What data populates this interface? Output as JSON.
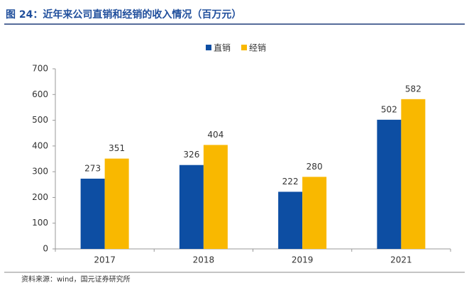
{
  "chart_data": {
    "type": "bar",
    "title": "图 24：近年来公司直销和经销的收入情况（百万元）",
    "source": "资料来源：wind，国元证券研究所",
    "categories": [
      "2017",
      "2018",
      "2019",
      "2021"
    ],
    "series": [
      {
        "name": "直销",
        "color": "#0d4ea3",
        "values": [
          273,
          326,
          222,
          502
        ]
      },
      {
        "name": "经销",
        "color": "#f9b800",
        "values": [
          351,
          404,
          280,
          582
        ]
      }
    ],
    "ylim": [
      0,
      700
    ],
    "yticks": [
      0,
      100,
      200,
      300,
      400,
      500,
      600,
      700
    ],
    "legend": "top",
    "grid": false
  }
}
